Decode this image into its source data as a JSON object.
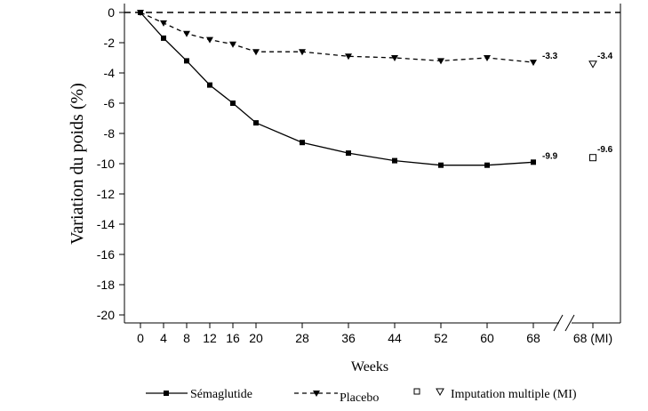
{
  "chart_data": {
    "type": "line",
    "ylabel": "Variation du poids (%)",
    "xlabel": "Weeks",
    "ylim": [
      -20,
      0
    ],
    "yticks": [
      0,
      -2,
      -4,
      -6,
      -8,
      -10,
      -12,
      -14,
      -16,
      -18,
      -20
    ],
    "x": [
      0,
      4,
      8,
      12,
      16,
      20,
      28,
      36,
      44,
      52,
      60,
      68
    ],
    "xtick_labels": [
      "0",
      "4",
      "8",
      "12",
      "16",
      "20",
      "28",
      "36",
      "44",
      "52",
      "60",
      "68"
    ],
    "extra_x_label": "68 (MI)",
    "reference_line": 0,
    "series": [
      {
        "name": "Sémaglutide",
        "style": "solid",
        "marker": "square-filled",
        "color": "#000000",
        "values": [
          0,
          -1.7,
          -3.2,
          -4.8,
          -6.0,
          -7.3,
          -8.6,
          -9.3,
          -9.8,
          -10.1,
          -10.1,
          -9.9
        ],
        "end_label": "-9.9"
      },
      {
        "name": "Placebo",
        "style": "dashed",
        "marker": "triangle-down-filled",
        "color": "#000000",
        "values": [
          0,
          -0.7,
          -1.4,
          -1.8,
          -2.1,
          -2.6,
          -2.6,
          -2.9,
          -3.0,
          -3.2,
          -3.0,
          -3.3
        ],
        "end_label": "-3.3"
      }
    ],
    "multiple_imputation": {
      "name": "Imputation multiple (MI)",
      "points": [
        {
          "marker": "square-open",
          "value": -9.6,
          "label": "-9.6"
        },
        {
          "marker": "triangle-down-open",
          "value": -3.4,
          "label": "-3.4"
        }
      ]
    },
    "legend": {
      "placement": "bottom",
      "entries": [
        "Sémaglutide",
        "Placebo",
        "Imputation multiple (MI)"
      ]
    },
    "grid": false
  }
}
